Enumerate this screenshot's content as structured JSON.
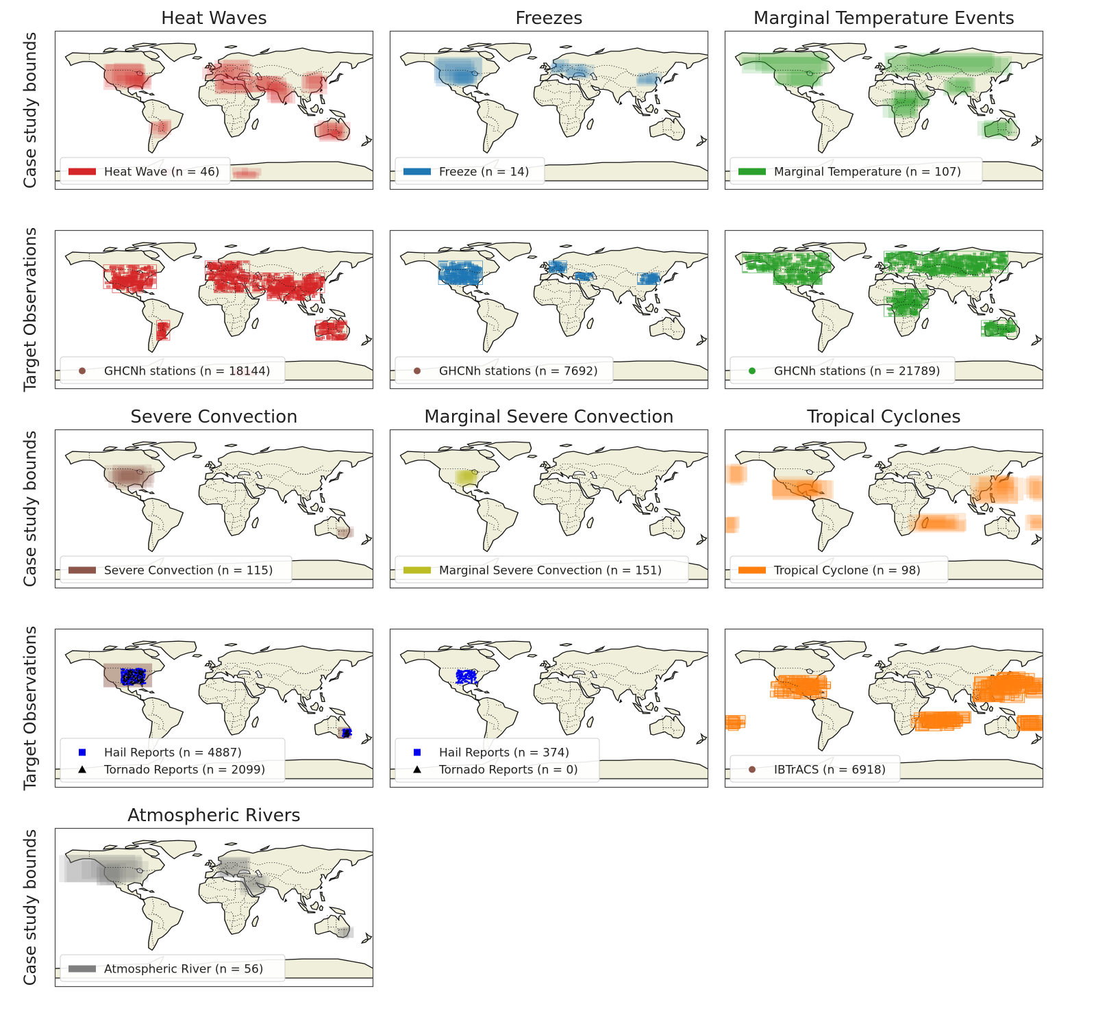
{
  "figure": {
    "row_labels": [
      "Case study bounds",
      "Target Observations",
      "Case study bounds",
      "Target Observations",
      "Case study bounds"
    ],
    "colors": {
      "ocean": "#ffffff",
      "land": "#efefdb",
      "coast": "#111111",
      "frame": "#444444"
    },
    "panels": [
      {
        "id": "heat-waves-bounds",
        "row": 0,
        "col": 0,
        "title": "Heat Waves",
        "kind": "bounds",
        "color": "#d62728",
        "legend": [
          {
            "symbol": "patch",
            "color": "#d62728",
            "label": "Heat Wave (n = 46)"
          }
        ],
        "regions": [
          [
            -125,
            25,
            -70,
            60
          ],
          [
            -105,
            25,
            -75,
            45
          ],
          [
            -10,
            35,
            40,
            60
          ],
          [
            0,
            20,
            40,
            40
          ],
          [
            40,
            20,
            80,
            45
          ],
          [
            60,
            10,
            90,
            35
          ],
          [
            100,
            20,
            125,
            45
          ],
          [
            -70,
            -35,
            -50,
            -15
          ],
          [
            115,
            -40,
            150,
            -15
          ],
          [
            130,
            -35,
            145,
            -25
          ],
          [
            -60,
            -85,
            -35,
            -75
          ],
          [
            20,
            -85,
            50,
            -75
          ]
        ]
      },
      {
        "id": "freezes-bounds",
        "row": 0,
        "col": 1,
        "title": "Freezes",
        "kind": "bounds",
        "color": "#1f77b4",
        "legend": [
          {
            "symbol": "patch",
            "color": "#1f77b4",
            "label": "Freeze (n = 14)"
          }
        ],
        "regions": [
          [
            -130,
            30,
            -75,
            65
          ],
          [
            -110,
            30,
            -80,
            50
          ],
          [
            0,
            45,
            20,
            60
          ],
          [
            20,
            40,
            50,
            55
          ],
          [
            100,
            30,
            125,
            45
          ]
        ]
      },
      {
        "id": "marginal-temp-bounds",
        "row": 0,
        "col": 2,
        "title": "Marginal Temperature Events",
        "kind": "bounds",
        "color": "#2ca02c",
        "legend": [
          {
            "symbol": "patch",
            "color": "#2ca02c",
            "label": "Marginal Temperature (n = 107)"
          }
        ],
        "regions": [
          [
            -160,
            45,
            -60,
            70
          ],
          [
            -125,
            30,
            -70,
            50
          ],
          [
            0,
            45,
            140,
            72
          ],
          [
            10,
            0,
            50,
            25
          ],
          [
            0,
            -10,
            40,
            15
          ],
          [
            70,
            20,
            100,
            40
          ],
          [
            110,
            -35,
            150,
            -15
          ]
        ]
      },
      {
        "id": "heat-waves-obs",
        "row": 1,
        "col": 0,
        "title": "",
        "kind": "obs",
        "color": "#d62728",
        "legend": [
          {
            "symbol": "circle",
            "color": "#8c564b",
            "label": "GHCNh stations (n = 18144)"
          }
        ],
        "regions": [
          [
            -125,
            25,
            -65,
            55
          ],
          [
            -115,
            20,
            -80,
            40
          ],
          [
            -10,
            35,
            40,
            60
          ],
          [
            0,
            20,
            40,
            40
          ],
          [
            40,
            20,
            90,
            45
          ],
          [
            60,
            10,
            120,
            35
          ],
          [
            100,
            20,
            125,
            45
          ],
          [
            -65,
            -40,
            -50,
            -15
          ],
          [
            115,
            -40,
            150,
            -15
          ],
          [
            20,
            -85,
            50,
            -75
          ]
        ]
      },
      {
        "id": "freezes-obs",
        "row": 1,
        "col": 1,
        "title": "",
        "kind": "obs",
        "color": "#1f77b4",
        "legend": [
          {
            "symbol": "circle",
            "color": "#8c564b",
            "label": "GHCNh stations (n = 7692)"
          }
        ],
        "regions": [
          [
            -125,
            30,
            -75,
            60
          ],
          [
            -110,
            30,
            -80,
            50
          ],
          [
            0,
            45,
            20,
            60
          ],
          [
            30,
            35,
            50,
            45
          ],
          [
            100,
            30,
            125,
            45
          ]
        ]
      },
      {
        "id": "marginal-temp-obs",
        "row": 1,
        "col": 2,
        "title": "",
        "kind": "obs",
        "color": "#2ca02c",
        "legend": [
          {
            "symbol": "circle",
            "color": "#2ca02c",
            "label": "GHCNh stations (n = 21789)"
          }
        ],
        "regions": [
          [
            -160,
            45,
            -60,
            70
          ],
          [
            -125,
            30,
            -70,
            50
          ],
          [
            0,
            45,
            140,
            72
          ],
          [
            40,
            40,
            120,
            60
          ],
          [
            10,
            0,
            50,
            25
          ],
          [
            0,
            -10,
            40,
            15
          ],
          [
            110,
            -35,
            150,
            -15
          ]
        ]
      },
      {
        "id": "severe-conv-bounds",
        "row": 2,
        "col": 0,
        "title": "Severe Convection",
        "kind": "bounds",
        "color": "#8c564b",
        "legend": [
          {
            "symbol": "patch",
            "color": "#8c564b",
            "label": "Severe Convection (n = 115)"
          }
        ],
        "regions": [
          [
            -125,
            25,
            -70,
            55
          ],
          [
            -110,
            28,
            -80,
            48
          ],
          [
            140,
            -40,
            155,
            -25
          ]
        ]
      },
      {
        "id": "marginal-severe-bounds",
        "row": 2,
        "col": 1,
        "title": "Marginal Severe Convection",
        "kind": "bounds",
        "color": "#bcbd22",
        "legend": [
          {
            "symbol": "patch",
            "color": "#bcbd22",
            "label": "Marginal Severe Convection (n = 151)"
          }
        ],
        "regions": [
          [
            -105,
            28,
            -80,
            48
          ],
          [
            -100,
            32,
            -82,
            45
          ]
        ]
      },
      {
        "id": "tropical-cyclones-bounds",
        "row": 2,
        "col": 2,
        "title": "Tropical Cyclones",
        "kind": "bounds",
        "color": "#ff7f0e",
        "legend": [
          {
            "symbol": "patch",
            "color": "#ff7f0e",
            "label": "Tropical Cyclone (n = 98)"
          }
        ],
        "regions": [
          [
            -180,
            30,
            -155,
            55
          ],
          [
            -130,
            10,
            -60,
            40
          ],
          [
            -100,
            15,
            -70,
            35
          ],
          [
            -180,
            -30,
            -165,
            -10
          ],
          [
            100,
            5,
            160,
            40
          ],
          [
            120,
            15,
            150,
            40
          ],
          [
            160,
            10,
            180,
            40
          ],
          [
            30,
            -30,
            100,
            -5
          ],
          [
            40,
            -25,
            80,
            -10
          ],
          [
            160,
            -30,
            180,
            -10
          ]
        ]
      },
      {
        "id": "severe-conv-obs",
        "row": 3,
        "col": 0,
        "title": "",
        "kind": "reports",
        "color": "#000000",
        "legend": [
          {
            "symbol": "square",
            "color": "#0000ee",
            "label": "Hail Reports (n = 4887)"
          },
          {
            "symbol": "triangle",
            "color": "#000000",
            "label": "Tornado Reports (n = 2099)"
          }
        ],
        "regions": [
          [
            -125,
            25,
            -70,
            55
          ],
          [
            140,
            -40,
            155,
            -25
          ]
        ],
        "hail_regions": [
          [
            -105,
            28,
            -78,
            48
          ],
          [
            145,
            -38,
            155,
            -28
          ]
        ]
      },
      {
        "id": "marginal-severe-obs",
        "row": 3,
        "col": 1,
        "title": "",
        "kind": "reports",
        "color": "#0000ee",
        "legend": [
          {
            "symbol": "square",
            "color": "#0000ee",
            "label": "Hail Reports (n = 374)"
          },
          {
            "symbol": "triangle",
            "color": "#000000",
            "label": "Tornado Reports (n = 0)"
          }
        ],
        "regions": [],
        "hail_regions": [
          [
            -105,
            30,
            -82,
            46
          ]
        ]
      },
      {
        "id": "tropical-cyclones-obs",
        "row": 3,
        "col": 2,
        "title": "",
        "kind": "tracks",
        "color": "#ff7f0e",
        "legend": [
          {
            "symbol": "circle",
            "color": "#8c564b",
            "label": "IBTrACS (n = 6918)"
          }
        ],
        "regions": [
          [
            -130,
            10,
            -60,
            40
          ],
          [
            -100,
            15,
            -70,
            35
          ],
          [
            -180,
            -30,
            -160,
            -10
          ],
          [
            100,
            5,
            160,
            40
          ],
          [
            120,
            15,
            170,
            45
          ],
          [
            160,
            10,
            180,
            40
          ],
          [
            30,
            -30,
            100,
            -5
          ],
          [
            40,
            -25,
            90,
            -10
          ],
          [
            150,
            -30,
            180,
            -10
          ]
        ]
      },
      {
        "id": "atmospheric-rivers-bounds",
        "row": 4,
        "col": 0,
        "title": "Atmospheric Rivers",
        "kind": "bounds",
        "color": "#7f7f7f",
        "legend": [
          {
            "symbol": "patch",
            "color": "#7f7f7f",
            "label": "Atmospheric River (n = 56)"
          }
        ],
        "regions": [
          [
            -170,
            30,
            -70,
            65
          ],
          [
            -130,
            25,
            -100,
            55
          ],
          [
            0,
            35,
            40,
            60
          ],
          [
            30,
            15,
            60,
            40
          ],
          [
            140,
            -40,
            155,
            -25
          ],
          [
            20,
            -85,
            50,
            -75
          ]
        ]
      }
    ]
  }
}
